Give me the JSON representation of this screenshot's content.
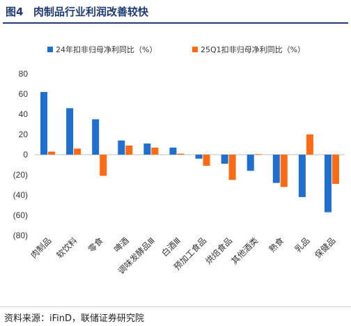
{
  "header": {
    "label": "图4",
    "title": "肉制品行业利润改善较快"
  },
  "source": "资料来源：iFinD，联储证券研究院",
  "chart_data": {
    "type": "bar",
    "categories": [
      "肉制品",
      "软饮料",
      "零食",
      "啤酒",
      "调味发酵品Ⅲ",
      "白酒Ⅲ",
      "预加工食品",
      "烘焙食品",
      "其他酒类",
      "熟食",
      "乳品",
      "保健品"
    ],
    "series": [
      {
        "name": "24年扣非归母净利同比（%）",
        "color": "#1f6fd1",
        "values": [
          62,
          46,
          35,
          14,
          11,
          7,
          -4,
          -9,
          -16,
          -28,
          -42,
          -57
        ]
      },
      {
        "name": "25Q1扣非归母净利同比（%）",
        "color": "#ff6a13",
        "values": [
          3,
          6,
          -21,
          9,
          7,
          1,
          -11,
          -25,
          0.5,
          -32,
          20,
          -29
        ]
      }
    ],
    "y_ticks": [
      "80",
      "60",
      "40",
      "20",
      "0",
      "(20)",
      "(40)",
      "(60)",
      "(80)"
    ],
    "ylim": [
      -80,
      80
    ],
    "legend_position": "top",
    "grid": false
  }
}
